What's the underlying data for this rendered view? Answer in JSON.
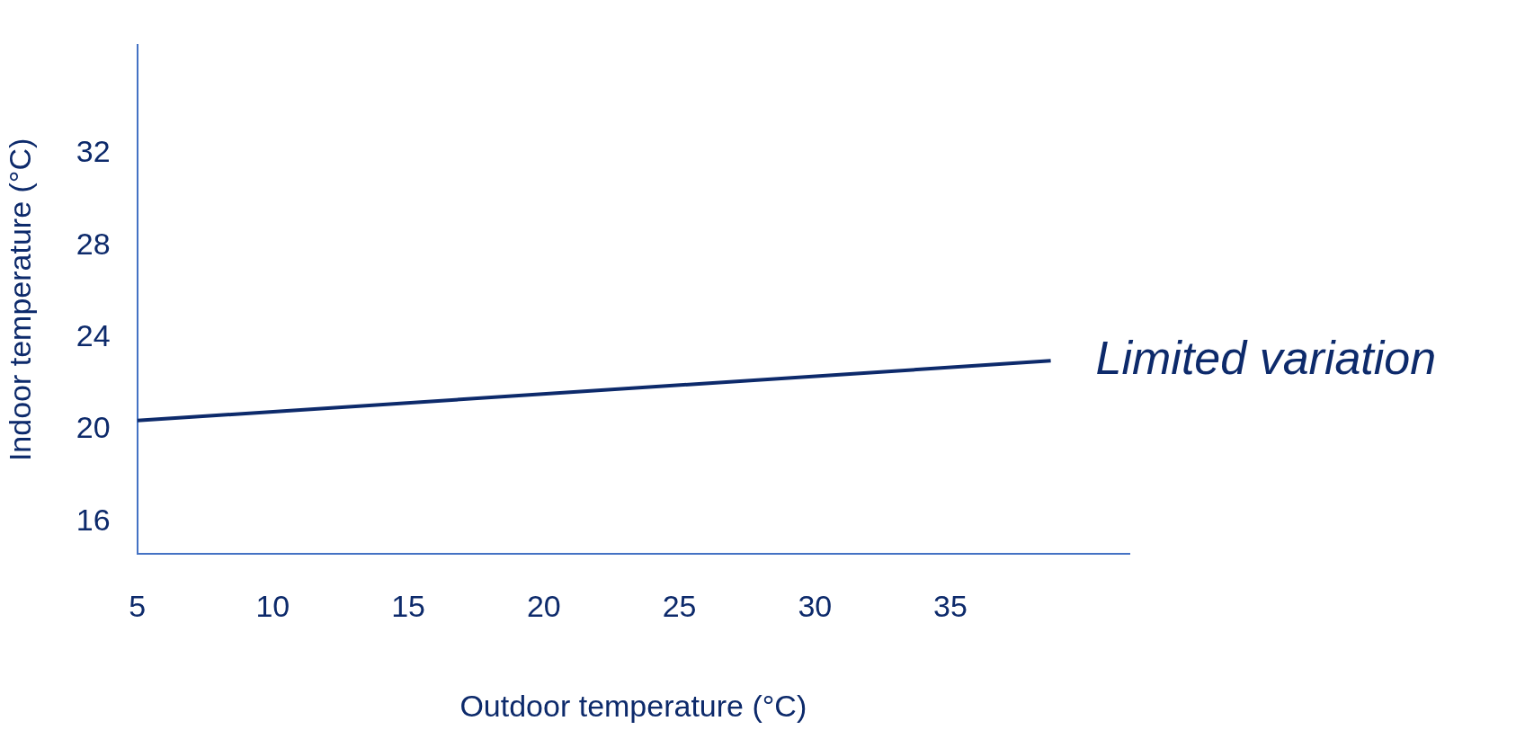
{
  "chart_data": {
    "type": "line",
    "xlabel": "Outdoor temperature (°C)",
    "ylabel": "Indoor temperature (°C)",
    "x": [
      5,
      38.7
    ],
    "series": [
      {
        "color": "#0d2a6b",
        "values": [
          20.4,
          23.0
        ]
      }
    ],
    "xlim": [
      5,
      41.6
    ],
    "xticks": [
      5,
      10,
      15,
      20,
      25,
      30,
      35
    ],
    "ylim": [
      14.6,
      36.7
    ],
    "yticks": [
      16,
      20,
      24,
      28,
      32
    ],
    "marker": "none",
    "line_style": "solid",
    "annotations": [
      {
        "text": "Limited variation",
        "x": 38.7,
        "y": 23.0
      }
    ]
  }
}
